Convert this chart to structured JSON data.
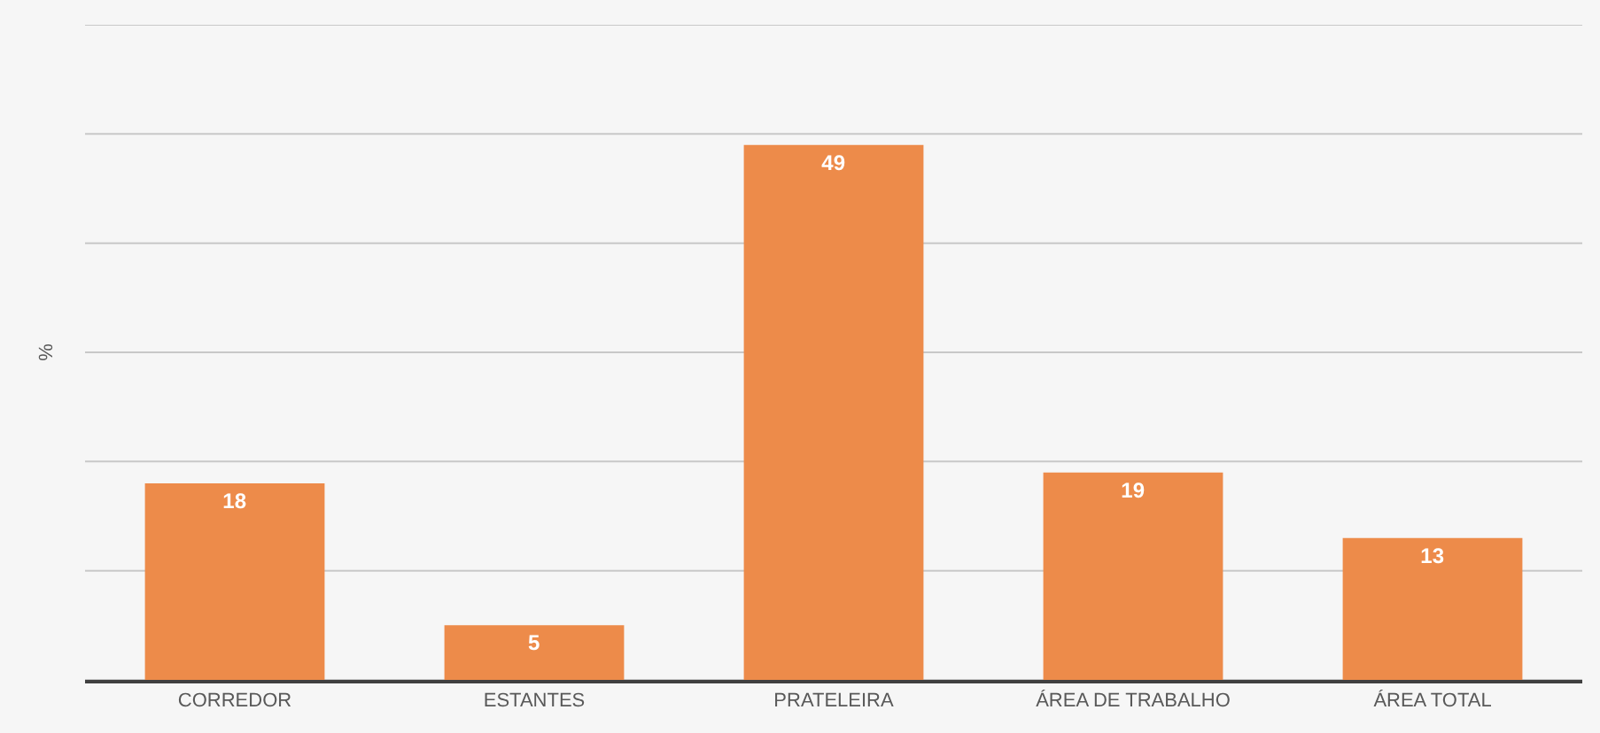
{
  "chart_data": {
    "type": "bar",
    "ylabel": "%",
    "categories": [
      "CORREDOR",
      "ESTANTES",
      "PRATELEIRA",
      "ÁREA DE TRABALHO",
      "ÁREA TOTAL"
    ],
    "values": [
      18,
      5,
      49,
      19,
      13
    ],
    "color": "#ed8b4a",
    "ylim": [
      0,
      60
    ],
    "yticks": [
      {
        "value": 0,
        "label": null
      },
      {
        "value": 10,
        "label": null
      },
      {
        "value": 20,
        "label": null
      },
      {
        "value": 30,
        "label": null
      },
      {
        "value": 40,
        "label": null
      },
      {
        "value": 50,
        "label": null
      },
      {
        "value": 60,
        "label": null
      }
    ],
    "grid": "y",
    "data_labels": true
  }
}
